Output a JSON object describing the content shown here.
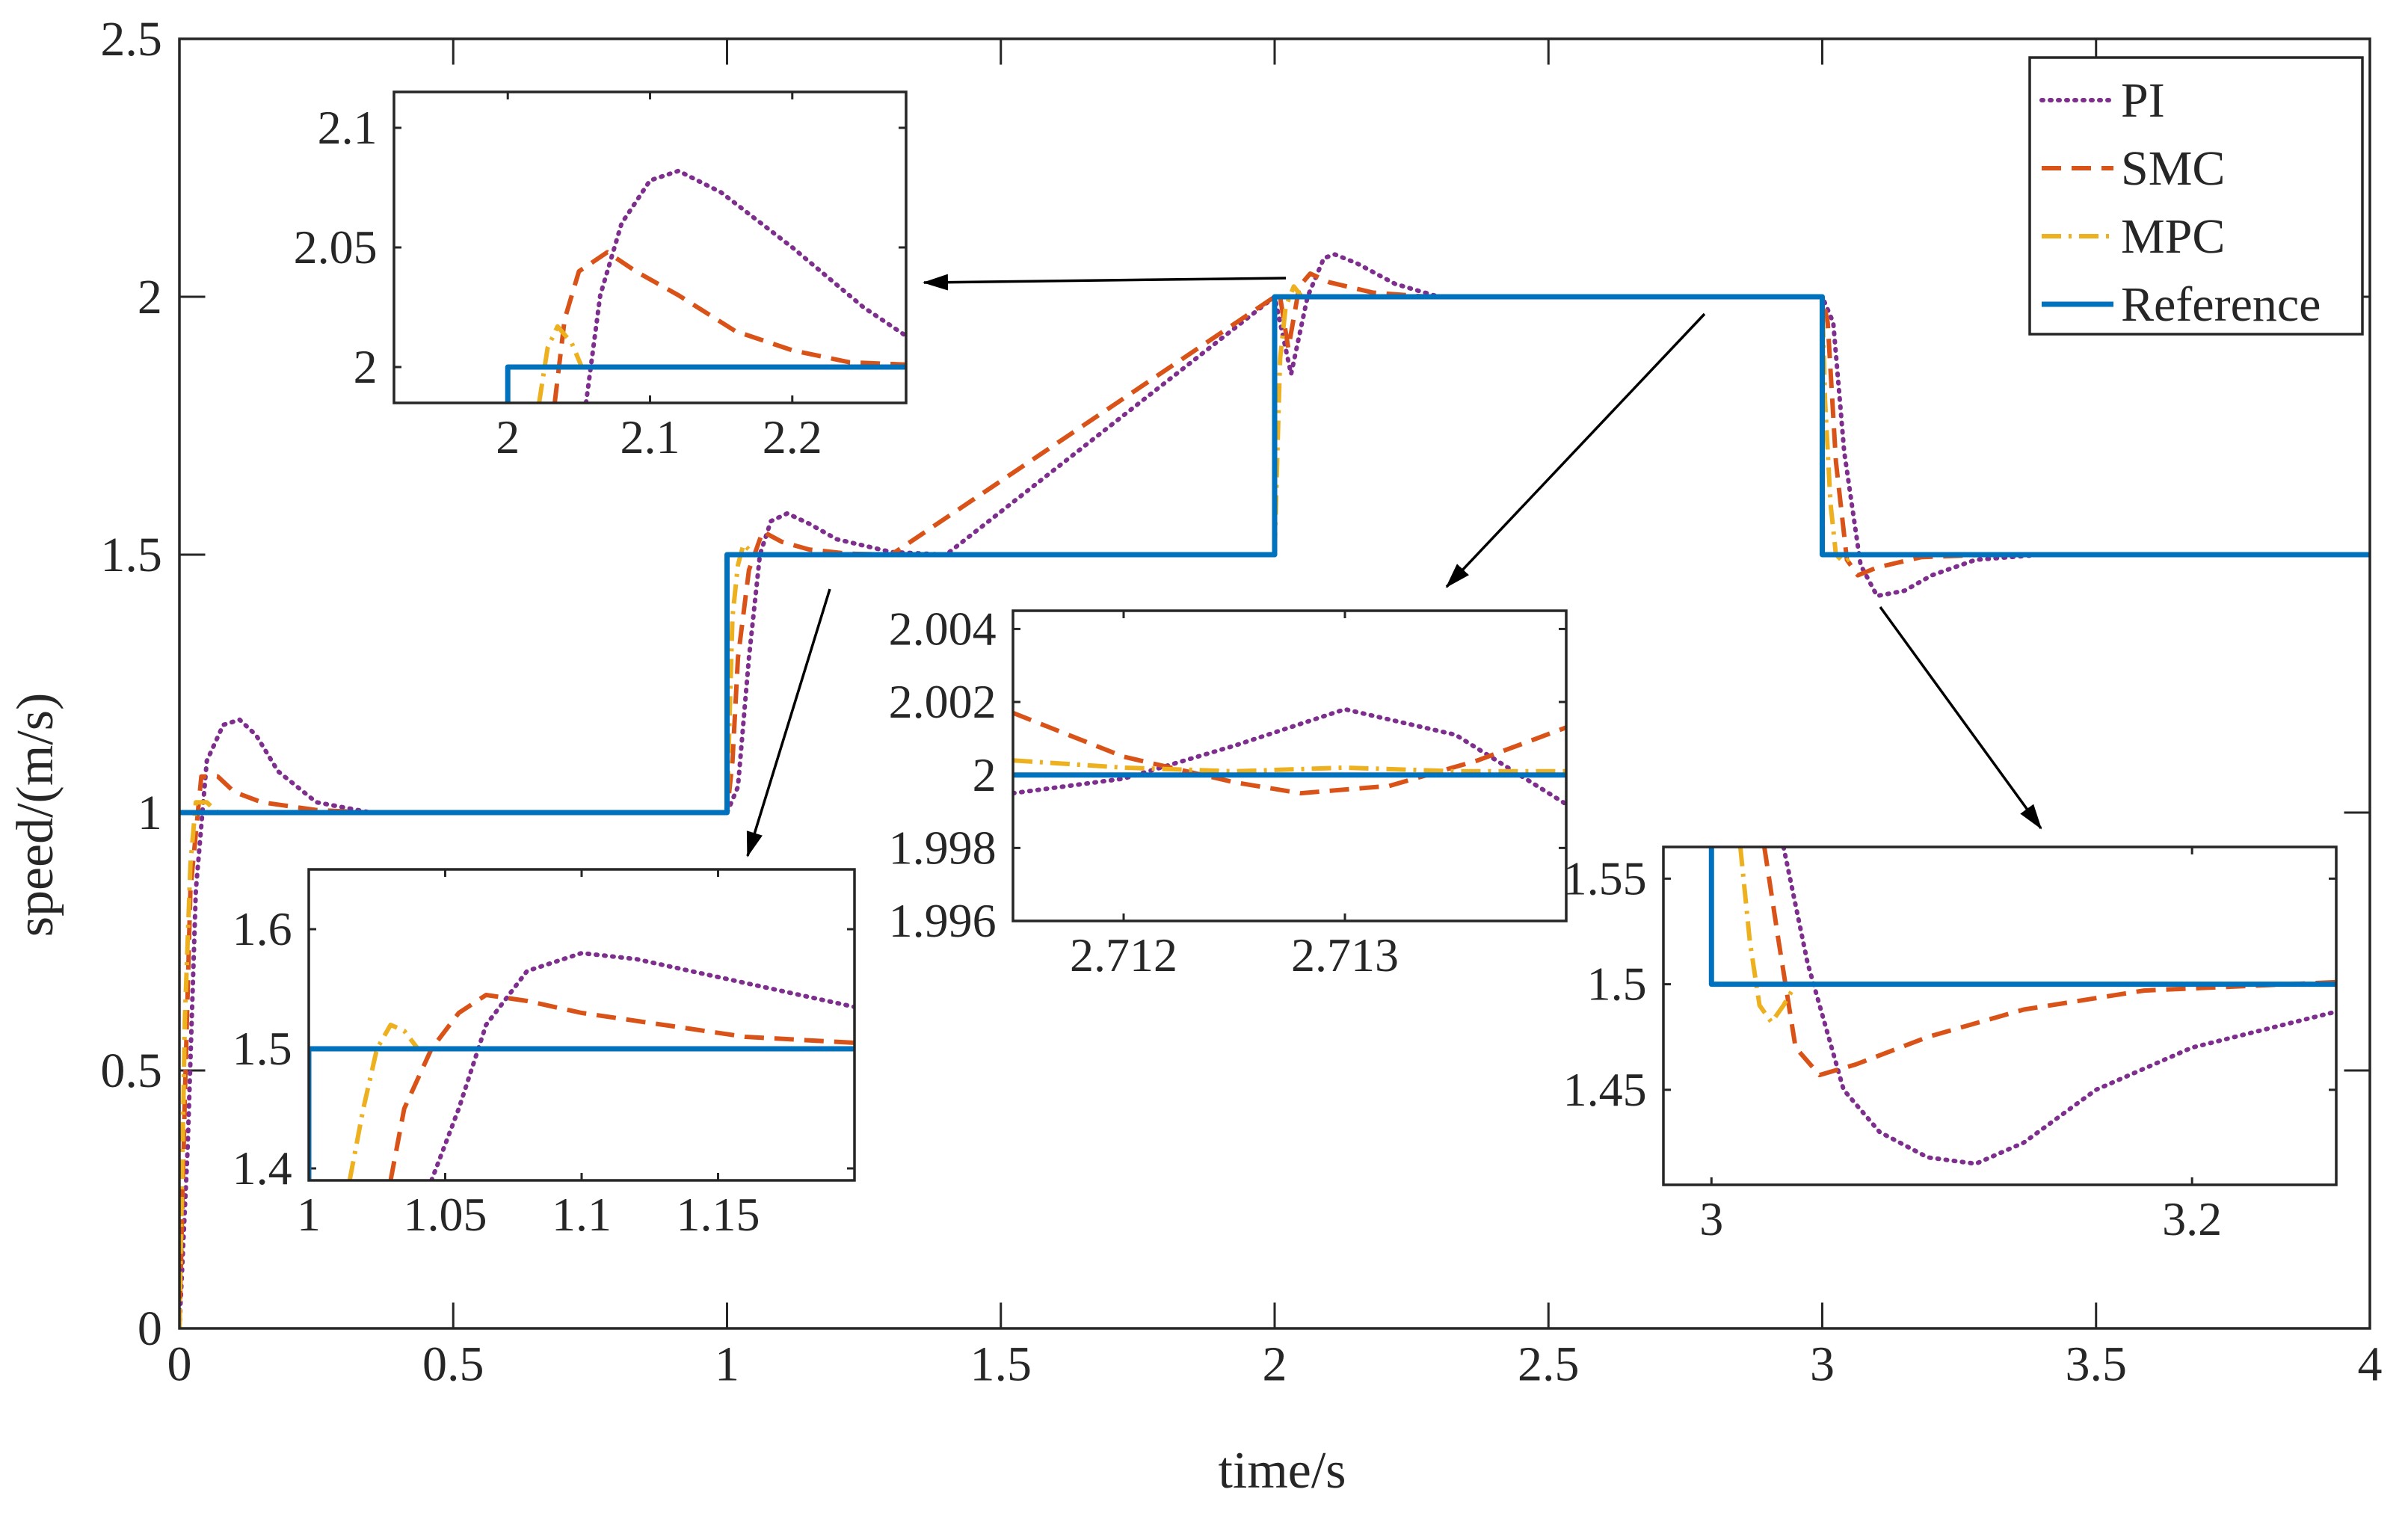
{
  "colors": {
    "pi": "#7E2F8E",
    "smc": "#D95319",
    "mpc": "#EDB120",
    "reference": "#0072BD",
    "axis": "#262626",
    "arrow": "#000000"
  },
  "chart_data": {
    "type": "line",
    "title": "",
    "xlabel": "time/s",
    "ylabel": "speed/(m/s)",
    "xlim": [
      0,
      4
    ],
    "ylim": [
      0,
      2.5
    ],
    "xticks": [
      0,
      0.5,
      1,
      1.5,
      2,
      2.5,
      3,
      3.5,
      4
    ],
    "yticks": [
      0,
      0.5,
      1,
      1.5,
      2,
      2.5
    ],
    "xtick_labels": [
      "0",
      "0.5",
      "1",
      "1.5",
      "2",
      "2.5",
      "3",
      "3.5",
      "4"
    ],
    "ytick_labels": [
      "0",
      "0.5",
      "1",
      "1.5",
      "2",
      "2.5"
    ],
    "legend_position": "top-right",
    "legend": [
      {
        "key": "pi",
        "label": "PI",
        "style": "dotted"
      },
      {
        "key": "smc",
        "label": "SMC",
        "style": "dashed"
      },
      {
        "key": "mpc",
        "label": "MPC",
        "style": "dash-dot"
      },
      {
        "key": "reference",
        "label": "Reference",
        "style": "solid"
      }
    ],
    "series": [
      {
        "key": "reference",
        "name": "Reference",
        "step": true,
        "x": [
          0,
          1,
          1,
          2,
          2,
          3,
          3,
          4
        ],
        "y": [
          1,
          1,
          1.5,
          1.5,
          2,
          2,
          1.5,
          1.5
        ]
      },
      {
        "key": "mpc",
        "name": "MPC",
        "x": [
          0,
          0.01,
          0.02,
          0.03,
          0.05,
          0.07,
          0.1,
          0.2,
          1.0,
          1.005,
          1.01,
          1.02,
          1.03,
          1.05,
          1.08,
          1.2,
          2.0,
          2.005,
          2.01,
          2.02,
          2.035,
          2.05,
          2.08,
          2.2,
          3.0,
          3.005,
          3.015,
          3.025,
          3.04,
          3.06,
          3.1,
          3.3,
          4.0
        ],
        "y": [
          0,
          0.6,
          0.9,
          1.02,
          1.02,
          1.0,
          1.0,
          1.0,
          1.0,
          1.2,
          1.38,
          1.48,
          1.52,
          1.5,
          1.5,
          1.5,
          1.5,
          1.7,
          1.88,
          1.98,
          2.02,
          2.0,
          2.0,
          2.0,
          2.0,
          1.8,
          1.6,
          1.5,
          1.485,
          1.5,
          1.5,
          1.5,
          1.5
        ]
      },
      {
        "key": "smc",
        "name": "SMC",
        "x": [
          0,
          0.01,
          0.02,
          0.04,
          0.07,
          0.1,
          0.15,
          0.25,
          0.35,
          1.0,
          1.01,
          1.02,
          1.04,
          1.065,
          1.1,
          1.15,
          1.22,
          1.3,
          2.0,
          2.01,
          2.025,
          2.045,
          2.065,
          2.1,
          2.18,
          2.28,
          3.0,
          3.01,
          3.025,
          3.045,
          3.065,
          3.1,
          3.18,
          3.3,
          4.0
        ],
        "y": [
          0,
          0.45,
          0.85,
          1.07,
          1.07,
          1.04,
          1.02,
          1.005,
          1.0,
          1.0,
          1.1,
          1.3,
          1.47,
          1.545,
          1.525,
          1.51,
          1.502,
          1.5,
          2.0,
          2.0,
          1.9,
          2.02,
          2.045,
          2.028,
          2.008,
          2.0,
          2.0,
          1.95,
          1.68,
          1.49,
          1.46,
          1.475,
          1.495,
          1.5,
          1.5
        ]
      },
      {
        "key": "pi",
        "name": "PI",
        "x": [
          0,
          0.015,
          0.03,
          0.05,
          0.08,
          0.11,
          0.14,
          0.18,
          0.25,
          0.35,
          1.0,
          1.02,
          1.04,
          1.06,
          1.08,
          1.11,
          1.15,
          1.2,
          1.3,
          1.4,
          2.0,
          2.03,
          2.06,
          2.09,
          2.11,
          2.15,
          2.22,
          2.3,
          3.0,
          3.02,
          3.04,
          3.07,
          3.1,
          3.15,
          3.2,
          3.28,
          3.4,
          4.0
        ],
        "y": [
          0,
          0.35,
          0.85,
          1.1,
          1.17,
          1.18,
          1.15,
          1.08,
          1.02,
          1.0,
          1.0,
          1.05,
          1.3,
          1.5,
          1.565,
          1.58,
          1.56,
          1.53,
          1.505,
          1.5,
          2.0,
          1.85,
          2.0,
          2.075,
          2.082,
          2.065,
          2.025,
          2.0,
          2.0,
          1.95,
          1.7,
          1.48,
          1.42,
          1.43,
          1.46,
          1.49,
          1.5,
          1.5
        ]
      }
    ],
    "insets": [
      {
        "id": "inset-start",
        "xlim": [
          1.0,
          1.2
        ],
        "ylim": [
          1.39,
          1.65
        ],
        "xticks": [
          1,
          1.05,
          1.1,
          1.15
        ],
        "xtick_labels": [
          "1",
          "1.05",
          "1.1",
          "1.15"
        ],
        "yticks": [
          1.4,
          1.5,
          1.6
        ],
        "ytick_labels": [
          "1.4",
          "1.5",
          "1.6"
        ],
        "series": [
          {
            "key": "reference",
            "x": [
              1.0,
              1.0,
              1.2
            ],
            "y": [
              1.39,
              1.5,
              1.5
            ]
          },
          {
            "key": "mpc",
            "x": [
              1.015,
              1.02,
              1.025,
              1.03,
              1.035,
              1.04
            ],
            "y": [
              1.39,
              1.45,
              1.5,
              1.52,
              1.515,
              1.5
            ]
          },
          {
            "key": "smc",
            "x": [
              1.03,
              1.035,
              1.045,
              1.055,
              1.065,
              1.08,
              1.1,
              1.13,
              1.16,
              1.2
            ],
            "y": [
              1.39,
              1.45,
              1.5,
              1.53,
              1.545,
              1.54,
              1.53,
              1.52,
              1.51,
              1.505
            ]
          },
          {
            "key": "pi",
            "x": [
              1.045,
              1.055,
              1.065,
              1.08,
              1.1,
              1.12,
              1.15,
              1.18,
              1.2
            ],
            "y": [
              1.39,
              1.45,
              1.52,
              1.565,
              1.58,
              1.575,
              1.56,
              1.545,
              1.535
            ]
          }
        ]
      },
      {
        "id": "inset-step-up",
        "xlim": [
          1.92,
          2.28
        ],
        "ylim": [
          1.985,
          2.115
        ],
        "xticks": [
          2,
          2.1,
          2.2
        ],
        "xtick_labels": [
          "2",
          "2.1",
          "2.2"
        ],
        "yticks": [
          2,
          2.05,
          2.1
        ],
        "ytick_labels": [
          "2",
          "2.05",
          "2.1"
        ],
        "series": [
          {
            "key": "reference",
            "x": [
              2.0,
              2.0,
              2.28
            ],
            "y": [
              1.985,
              2.0,
              2.0
            ]
          },
          {
            "key": "mpc",
            "x": [
              2.022,
              2.028,
              2.035,
              2.045,
              2.052
            ],
            "y": [
              1.985,
              2.008,
              2.017,
              2.01,
              2.0
            ]
          },
          {
            "key": "smc",
            "x": [
              2.033,
              2.04,
              2.05,
              2.07,
              2.09,
              2.12,
              2.16,
              2.2,
              2.24,
              2.28
            ],
            "y": [
              1.985,
              2.02,
              2.04,
              2.048,
              2.04,
              2.03,
              2.015,
              2.007,
              2.002,
              2.001
            ]
          },
          {
            "key": "pi",
            "x": [
              2.055,
              2.065,
              2.08,
              2.1,
              2.12,
              2.15,
              2.2,
              2.25,
              2.28
            ],
            "y": [
              1.985,
              2.03,
              2.06,
              2.078,
              2.082,
              2.073,
              2.05,
              2.025,
              2.013
            ]
          }
        ]
      },
      {
        "id": "inset-steady",
        "xlim": [
          2.7115,
          2.714
        ],
        "ylim": [
          1.996,
          2.0045
        ],
        "xticks": [
          2.712,
          2.713
        ],
        "xtick_labels": [
          "2.712",
          "2.713"
        ],
        "yticks": [
          1.996,
          1.998,
          2,
          2.002,
          2.004
        ],
        "ytick_labels": [
          "1.996",
          "1.998",
          "2",
          "2.002",
          "2.004"
        ],
        "series": [
          {
            "key": "reference",
            "x": [
              2.7115,
              2.714
            ],
            "y": [
              2.0,
              2.0
            ]
          },
          {
            "key": "mpc",
            "x": [
              2.7115,
              2.712,
              2.7125,
              2.713,
              2.7135,
              2.714
            ],
            "y": [
              2.0004,
              2.0002,
              2.0001,
              2.0002,
              2.0001,
              2.0001
            ]
          },
          {
            "key": "smc",
            "x": [
              2.7115,
              2.712,
              2.7125,
              2.7128,
              2.7132,
              2.7136,
              2.714
            ],
            "y": [
              2.0017,
              2.0005,
              1.9998,
              1.9995,
              1.9997,
              2.0004,
              2.0013
            ]
          },
          {
            "key": "pi",
            "x": [
              2.7115,
              2.712,
              2.7125,
              2.713,
              2.7135,
              2.714
            ],
            "y": [
              1.9995,
              1.9999,
              2.0008,
              2.0018,
              2.0011,
              1.9992
            ]
          }
        ]
      },
      {
        "id": "inset-step-down",
        "xlim": [
          2.98,
          3.26
        ],
        "ylim": [
          1.405,
          1.565
        ],
        "xticks": [
          3,
          3.2
        ],
        "xtick_labels": [
          "3",
          "3.2"
        ],
        "yticks": [
          1.45,
          1.5,
          1.55
        ],
        "ytick_labels": [
          "1.45",
          "1.5",
          "1.55"
        ],
        "series": [
          {
            "key": "reference",
            "x": [
              3.0,
              3.0,
              3.26
            ],
            "y": [
              1.565,
              1.5,
              1.5
            ]
          },
          {
            "key": "mpc",
            "x": [
              3.012,
              3.016,
              3.02,
              3.025,
              3.03,
              3.035,
              3.04
            ],
            "y": [
              1.565,
              1.52,
              1.49,
              1.482,
              1.49,
              1.5,
              1.5
            ]
          },
          {
            "key": "smc",
            "x": [
              3.022,
              3.028,
              3.035,
              3.045,
              3.06,
              3.09,
              3.13,
              3.18,
              3.26
            ],
            "y": [
              1.565,
              1.52,
              1.47,
              1.457,
              1.462,
              1.475,
              1.488,
              1.497,
              1.501
            ]
          },
          {
            "key": "pi",
            "x": [
              3.03,
              3.04,
              3.055,
              3.07,
              3.09,
              3.11,
              3.13,
              3.16,
              3.2,
              3.26
            ],
            "y": [
              1.565,
              1.51,
              1.45,
              1.43,
              1.418,
              1.415,
              1.425,
              1.45,
              1.47,
              1.487
            ]
          }
        ]
      }
    ]
  }
}
